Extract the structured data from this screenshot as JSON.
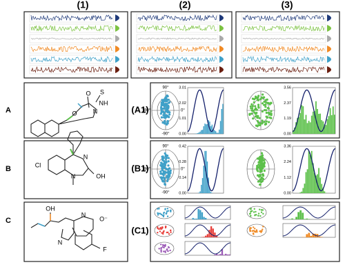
{
  "columns": [
    "(1)",
    "(2)",
    "(3)"
  ],
  "rows": [
    {
      "label": "A",
      "panel": "(A1)",
      "atoms": [
        "O",
        "S",
        "NH",
        "N",
        "O"
      ],
      "polar_labels": [
        "90°",
        "180°",
        "0°",
        "-90°"
      ],
      "hist1_ticks": [
        "3.01",
        "2.02",
        "1.01",
        "0.00"
      ],
      "hist2_ticks": [
        "3.56",
        "2.37",
        "1.19",
        "0.00"
      ]
    },
    {
      "label": "B",
      "panel": "(B1)",
      "atoms": [
        "Cl",
        "N",
        "N",
        "OH"
      ],
      "polar_labels": [
        "90°",
        "180°",
        "0°",
        "-90°"
      ],
      "hist1_ticks": [
        "0.42",
        "0.28",
        "0.14",
        "0.00"
      ],
      "hist2_ticks": [
        "3.36",
        "2.24",
        "1.12",
        "0.00"
      ]
    },
    {
      "label": "C",
      "panel": "(C1)",
      "atoms": [
        "OH",
        "N",
        "O⁻",
        "N",
        "F"
      ]
    }
  ]
}
